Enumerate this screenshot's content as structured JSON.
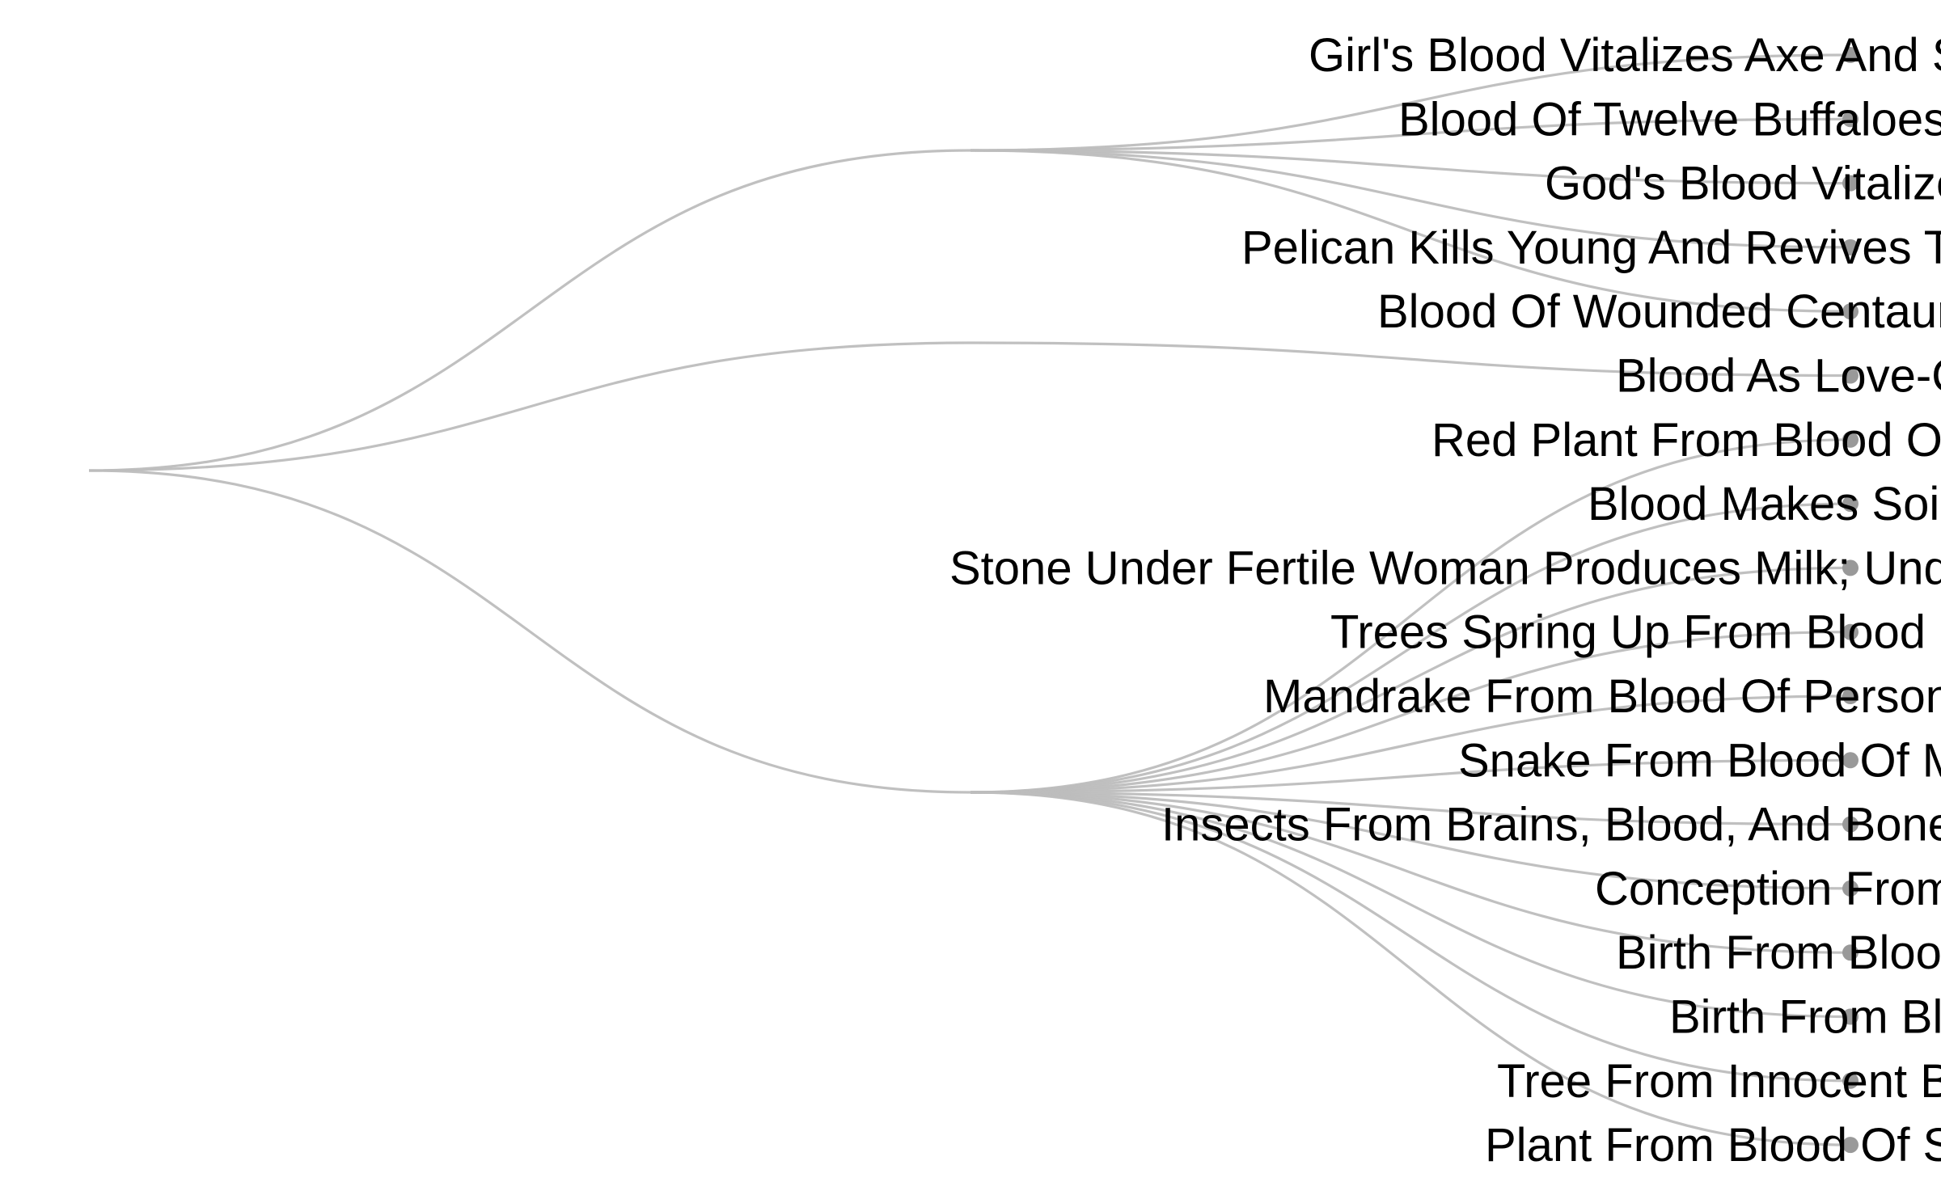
{
  "diagram": {
    "type": "dendrogram",
    "groups": [
      {
        "leaves": [
          "Girl's Blood Vitalizes Axe And Spear",
          "Blood Of Twelve Buffaloes",
          "God's Blood Vitalizes",
          "Pelican Kills Young And Revives Them",
          "Blood Of Wounded Centaur"
        ]
      },
      {
        "leaves": [
          "Blood As Love-Charm"
        ]
      },
      {
        "leaves": [
          "Red Plant From Blood Of Slain",
          "Blood Makes Soil Fertile",
          "Stone Under Fertile Woman Produces Milk; Under Barren Woman, Blood",
          "Trees Spring Up From Blood",
          "Mandrake From Blood Of Person",
          "Snake From Blood Of Monster",
          "Insects From Brains, Blood, And Bones",
          "Conception From Blood",
          "Birth From Blood",
          "Birth From Blood Clot",
          "Tree From Innocent Blood",
          "Plant From Blood Of Slain"
        ]
      }
    ],
    "colors": {
      "link": "#bdbdbd",
      "node": "#999999",
      "label": "#000000"
    }
  }
}
